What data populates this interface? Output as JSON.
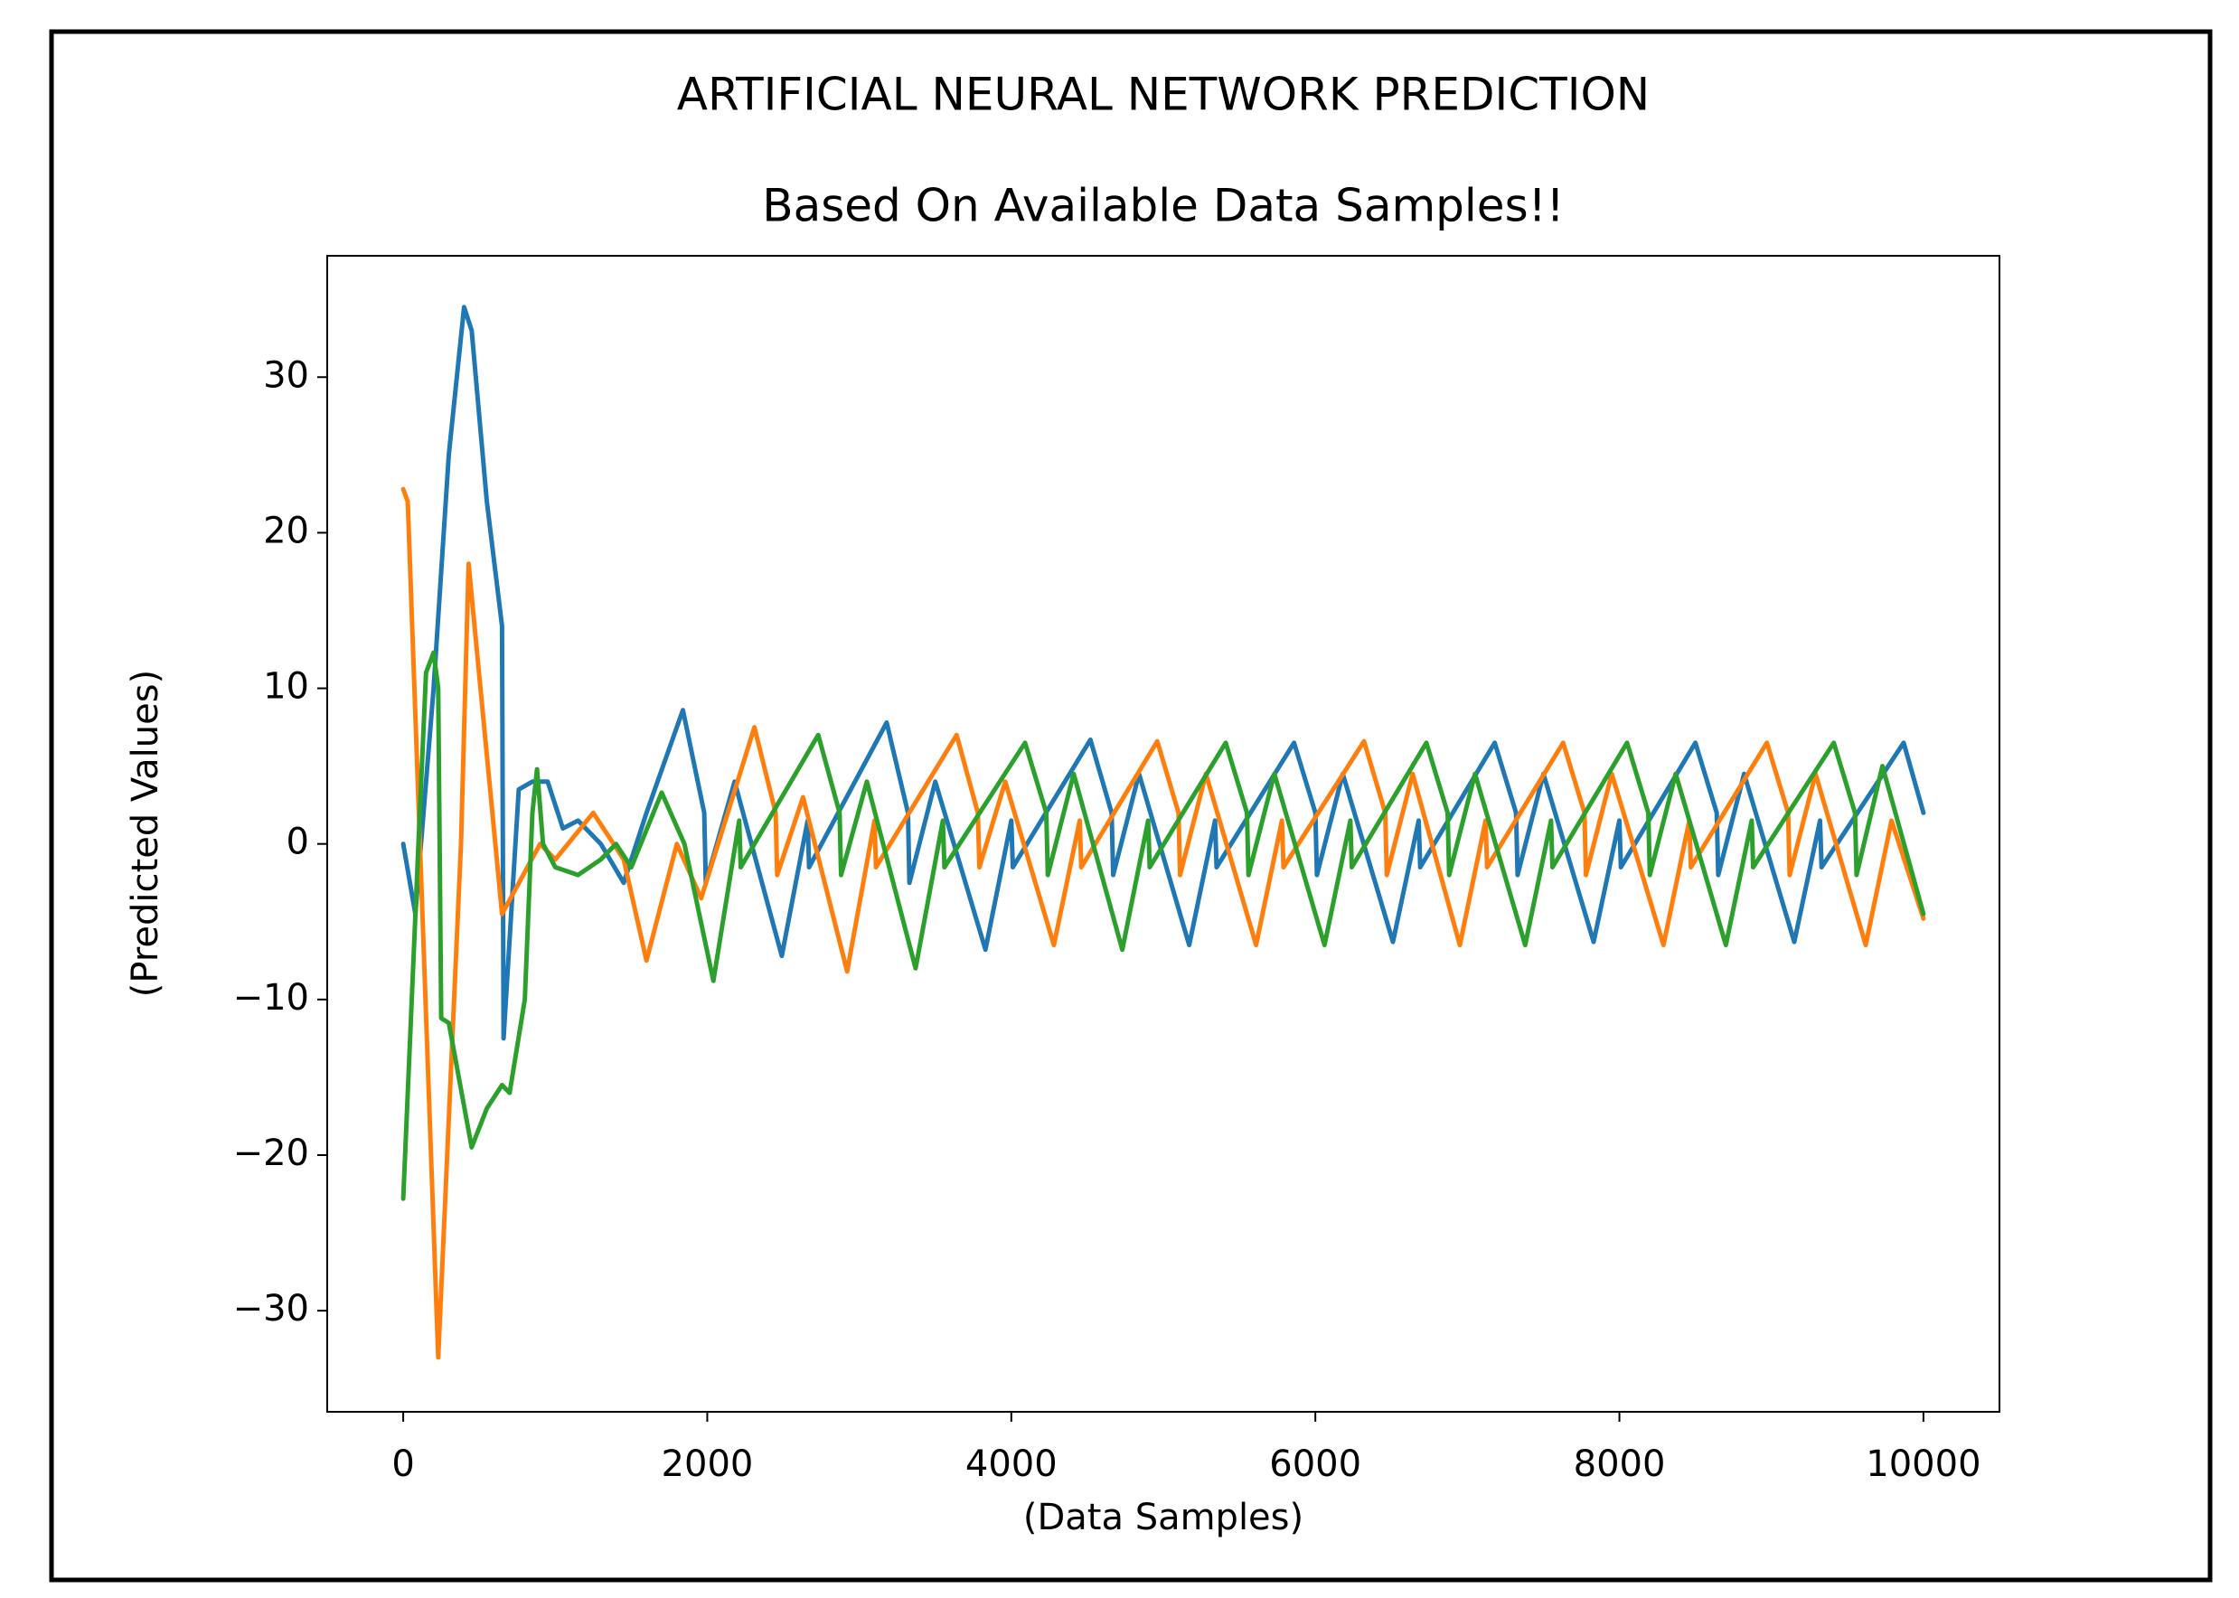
{
  "chart_data": {
    "type": "line",
    "title": "ARTIFICIAL NEURAL NETWORK PREDICTION",
    "subtitle": "Based On Available Data Samples!!",
    "x_label": "(Data Samples)",
    "y_label": "(Predicted Values)",
    "xlim": [
      -500,
      10500
    ],
    "ylim": [
      -36.5,
      37.8
    ],
    "xticks": [
      0,
      2000,
      4000,
      6000,
      8000,
      10000
    ],
    "yticks": [
      {
        "value": -30,
        "label": "−30"
      },
      {
        "value": -20,
        "label": "−20"
      },
      {
        "value": -10,
        "label": "−10"
      },
      0,
      10,
      20,
      30
    ],
    "grid": false,
    "series": [
      {
        "color": "#1f77b4",
        "x": [
          0,
          80,
          200,
          300,
          400,
          450,
          550,
          650,
          660,
          760,
          850,
          950,
          1050,
          1150,
          1300,
          1450,
          1600,
          1840,
          1980,
          1990,
          2180,
          2490,
          2660,
          2670,
          3180,
          3320,
          3330,
          3500,
          3830,
          4000,
          4010,
          4520,
          4660,
          4670,
          4840,
          5170,
          5340,
          5350,
          5860,
          6000,
          6010,
          6180,
          6510,
          6680,
          6690,
          7180,
          7320,
          7330,
          7500,
          7830,
          8000,
          8010,
          8500,
          8640,
          8650,
          8820,
          9150,
          9320,
          9330,
          9870,
          10000
        ],
        "values": [
          0,
          -4.5,
          10,
          25,
          34.5,
          33,
          22,
          14,
          -12.5,
          3.5,
          4,
          4,
          1,
          1.5,
          0,
          -2.5,
          2,
          8.6,
          2,
          -2.5,
          4,
          -7.2,
          1.5,
          -1.5,
          7.8,
          2,
          -2.5,
          4,
          -6.8,
          1.5,
          -1.5,
          6.7,
          2,
          -2,
          4.5,
          -6.5,
          1.5,
          -1.5,
          6.5,
          2,
          -2,
          4.5,
          -6.3,
          1.5,
          -1.5,
          6.5,
          2,
          -2,
          4.5,
          -6.3,
          1.5,
          -1.5,
          6.5,
          2,
          -2,
          4.5,
          -6.3,
          1.5,
          -1.5,
          6.5,
          2
        ]
      },
      {
        "color": "#ff7f0e",
        "x": [
          0,
          30,
          230,
          380,
          430,
          650,
          900,
          1000,
          1250,
          1450,
          1600,
          1800,
          1960,
          2310,
          2450,
          2460,
          2630,
          2920,
          3100,
          3110,
          3640,
          3780,
          3790,
          3960,
          4280,
          4450,
          4460,
          4960,
          5100,
          5110,
          5280,
          5610,
          5780,
          5790,
          6320,
          6460,
          6470,
          6640,
          6950,
          7120,
          7130,
          7630,
          7770,
          7780,
          7950,
          8290,
          8460,
          8470,
          8970,
          9110,
          9120,
          9290,
          9620,
          9790,
          10000
        ],
        "values": [
          22.8,
          22,
          -33,
          0,
          18,
          -4.5,
          0,
          -1,
          2,
          -1,
          -7.5,
          0,
          -3.5,
          7.5,
          2,
          -2,
          3,
          -8.2,
          1.5,
          -1.5,
          7,
          2,
          -1.5,
          4,
          -6.5,
          1.5,
          -1.5,
          6.6,
          2,
          -2,
          4.5,
          -6.5,
          1.5,
          -1.5,
          6.6,
          2,
          -2,
          4.5,
          -6.5,
          1.5,
          -1.5,
          6.5,
          2,
          -2,
          4.5,
          -6.5,
          1.5,
          -1.5,
          6.5,
          2,
          -2,
          4.5,
          -6.5,
          1.5,
          -4.8
        ]
      },
      {
        "color": "#2ca02c",
        "x": [
          0,
          100,
          150,
          200,
          230,
          250,
          300,
          450,
          550,
          650,
          700,
          800,
          850,
          880,
          920,
          1000,
          1150,
          1300,
          1400,
          1500,
          1700,
          1850,
          2040,
          2210,
          2220,
          2730,
          2870,
          2880,
          3050,
          3370,
          3550,
          3560,
          4090,
          4230,
          4240,
          4410,
          4730,
          4900,
          4910,
          5410,
          5550,
          5560,
          5730,
          6060,
          6230,
          6240,
          6730,
          6870,
          6880,
          7050,
          7380,
          7550,
          7560,
          8050,
          8190,
          8200,
          8370,
          8700,
          8870,
          8880,
          9410,
          9550,
          9560,
          9730,
          10000
        ],
        "values": [
          -22.8,
          0,
          11,
          12.3,
          10,
          -11.2,
          -11.5,
          -19.5,
          -17,
          -15.5,
          -16,
          -10,
          2,
          4.8,
          0,
          -1.5,
          -2,
          -1,
          0,
          -1.5,
          3.3,
          0,
          -8.8,
          1.5,
          -1.5,
          7,
          2,
          -2,
          4,
          -8,
          1.5,
          -1.5,
          6.5,
          2,
          -2,
          4.5,
          -6.8,
          1.5,
          -1.5,
          6.5,
          2,
          -2,
          4.5,
          -6.5,
          1.5,
          -1.5,
          6.5,
          2,
          -2,
          4.5,
          -6.5,
          1.5,
          -1.5,
          6.5,
          2,
          -2,
          4.5,
          -6.5,
          1.5,
          -1.5,
          6.5,
          2,
          -2,
          5,
          -4.5
        ]
      }
    ]
  }
}
